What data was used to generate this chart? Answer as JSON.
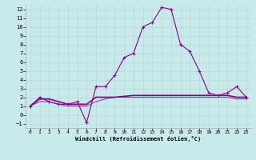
{
  "xlabel": "Windchill (Refroidissement éolien,°C)",
  "background_color": "#c8eaea",
  "grid_color": "#b8d8d8",
  "line_color": "#880088",
  "xlim": [
    -0.5,
    23.5
  ],
  "ylim": [
    -1.5,
    12.5
  ],
  "xticks": [
    0,
    1,
    2,
    3,
    4,
    5,
    6,
    7,
    8,
    9,
    10,
    11,
    12,
    13,
    14,
    15,
    16,
    17,
    18,
    19,
    20,
    21,
    22,
    23
  ],
  "yticks": [
    -1,
    0,
    1,
    2,
    3,
    4,
    5,
    6,
    7,
    8,
    9,
    10,
    11,
    12
  ],
  "series1_x": [
    0,
    1,
    2,
    3,
    4,
    5,
    6,
    7,
    8,
    9,
    10,
    11,
    12,
    13,
    14,
    15,
    16,
    17,
    18,
    19,
    20,
    21,
    22,
    23
  ],
  "series1_y": [
    1.0,
    2.0,
    1.5,
    1.2,
    1.2,
    1.5,
    -0.9,
    3.2,
    3.2,
    4.5,
    6.5,
    7.0,
    10.0,
    10.5,
    12.2,
    12.0,
    8.0,
    7.2,
    5.0,
    2.5,
    2.2,
    2.5,
    3.2,
    2.0
  ],
  "series2_x": [
    0,
    1,
    2,
    3,
    4,
    5,
    6,
    7,
    8,
    9,
    10,
    11,
    12,
    13,
    14,
    15,
    16,
    17,
    18,
    19,
    20,
    21,
    22,
    23
  ],
  "series2_y": [
    1.0,
    1.8,
    1.8,
    1.5,
    1.2,
    1.2,
    1.2,
    2.0,
    2.0,
    2.0,
    2.1,
    2.2,
    2.2,
    2.2,
    2.2,
    2.2,
    2.2,
    2.2,
    2.2,
    2.2,
    2.2,
    2.2,
    2.0,
    2.0
  ],
  "series3_x": [
    0,
    1,
    2,
    3,
    4,
    5,
    6,
    7,
    8,
    9,
    10,
    11,
    12,
    13,
    14,
    15,
    16,
    17,
    18,
    19,
    20,
    21,
    22,
    23
  ],
  "series3_y": [
    1.0,
    1.5,
    1.5,
    1.2,
    1.0,
    1.0,
    1.0,
    1.5,
    1.8,
    2.0,
    2.0,
    2.0,
    2.0,
    2.0,
    2.0,
    2.0,
    2.0,
    2.0,
    2.0,
    2.0,
    2.0,
    2.0,
    1.8,
    1.8
  ]
}
